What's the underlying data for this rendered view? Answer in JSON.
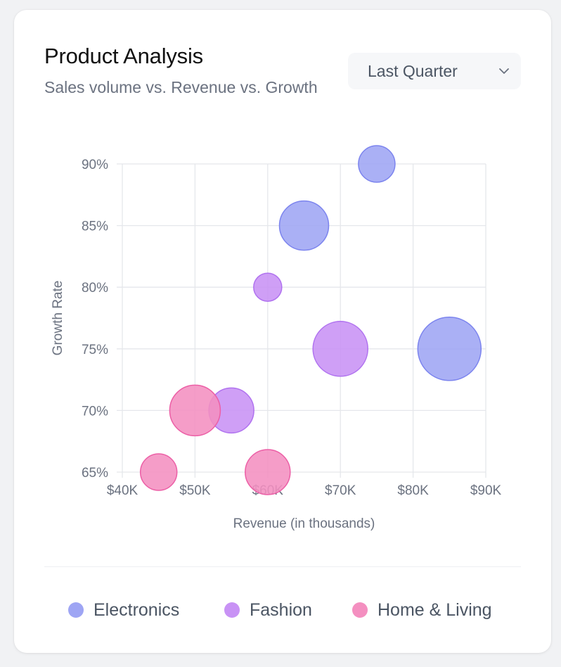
{
  "header": {
    "title": "Product Analysis",
    "subtitle": "Sales volume vs. Revenue vs. Growth"
  },
  "period_select": {
    "selected": "Last Quarter",
    "icon": "chevron-down-icon"
  },
  "legend": [
    {
      "label": "Electronics",
      "color": "#9ea5f4"
    },
    {
      "label": "Fashion",
      "color": "#c892f5"
    },
    {
      "label": "Home & Living",
      "color": "#f48fc0"
    }
  ],
  "chart_data": {
    "type": "scatter",
    "subtype": "bubble",
    "xlabel": "Revenue (in thousands)",
    "ylabel": "Growth Rate",
    "xlim": [
      40,
      90
    ],
    "ylim": [
      65,
      90
    ],
    "x_ticks": [
      "$40K",
      "$50K",
      "$60K",
      "$70K",
      "$80K",
      "$90K"
    ],
    "y_ticks": [
      "90%",
      "85%",
      "80%",
      "75%",
      "70%",
      "65%"
    ],
    "grid": true,
    "series": [
      {
        "name": "Electronics",
        "fill": "#9ea5f4",
        "stroke": "#7c84ee",
        "points": [
          {
            "x": 75,
            "y": 90,
            "size": 26
          },
          {
            "x": 65,
            "y": 85,
            "size": 35
          },
          {
            "x": 85,
            "y": 75,
            "size": 45
          }
        ]
      },
      {
        "name": "Fashion",
        "fill": "#c892f5",
        "stroke": "#b072ef",
        "points": [
          {
            "x": 60,
            "y": 80,
            "size": 20
          },
          {
            "x": 70,
            "y": 75,
            "size": 39
          },
          {
            "x": 55,
            "y": 70,
            "size": 32
          }
        ]
      },
      {
        "name": "Home & Living",
        "fill": "#f48fc0",
        "stroke": "#ec5fa6",
        "points": [
          {
            "x": 50,
            "y": 70,
            "size": 36
          },
          {
            "x": 45,
            "y": 65,
            "size": 26
          },
          {
            "x": 60,
            "y": 65,
            "size": 32
          }
        ]
      }
    ]
  }
}
